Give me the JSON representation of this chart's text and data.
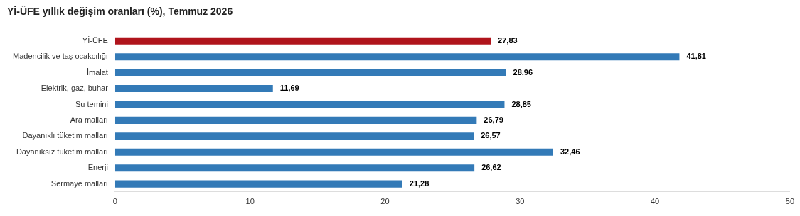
{
  "chart_data": {
    "type": "bar",
    "orientation": "horizontal",
    "title": "Yİ-ÜFE yıllık değişim oranları (%), Temmuz 2026",
    "categories": [
      "Yİ-ÜFE",
      "Madencilik ve taş ocakcılığı",
      "İmalat",
      "Elektrik, gaz, buhar",
      "Su temini",
      "Ara malları",
      "Dayanıklı tüketim malları",
      "Dayanıksız tüketim malları",
      "Enerji",
      "Sermaye malları"
    ],
    "values": [
      27.83,
      41.81,
      28.96,
      11.69,
      28.85,
      26.79,
      26.57,
      32.46,
      26.62,
      21.28
    ],
    "colors": [
      "#b0141c",
      "#337ab7",
      "#337ab7",
      "#337ab7",
      "#337ab7",
      "#337ab7",
      "#337ab7",
      "#337ab7",
      "#337ab7",
      "#337ab7"
    ],
    "value_labels": [
      "27,83",
      "41,81",
      "28,96",
      "11,69",
      "28,85",
      "26,79",
      "26,57",
      "32,46",
      "26,62",
      "21,28"
    ],
    "xlim": [
      0,
      50
    ],
    "xticks": [
      0,
      10,
      20,
      30,
      40,
      50
    ],
    "grid": false,
    "legend": false
  }
}
